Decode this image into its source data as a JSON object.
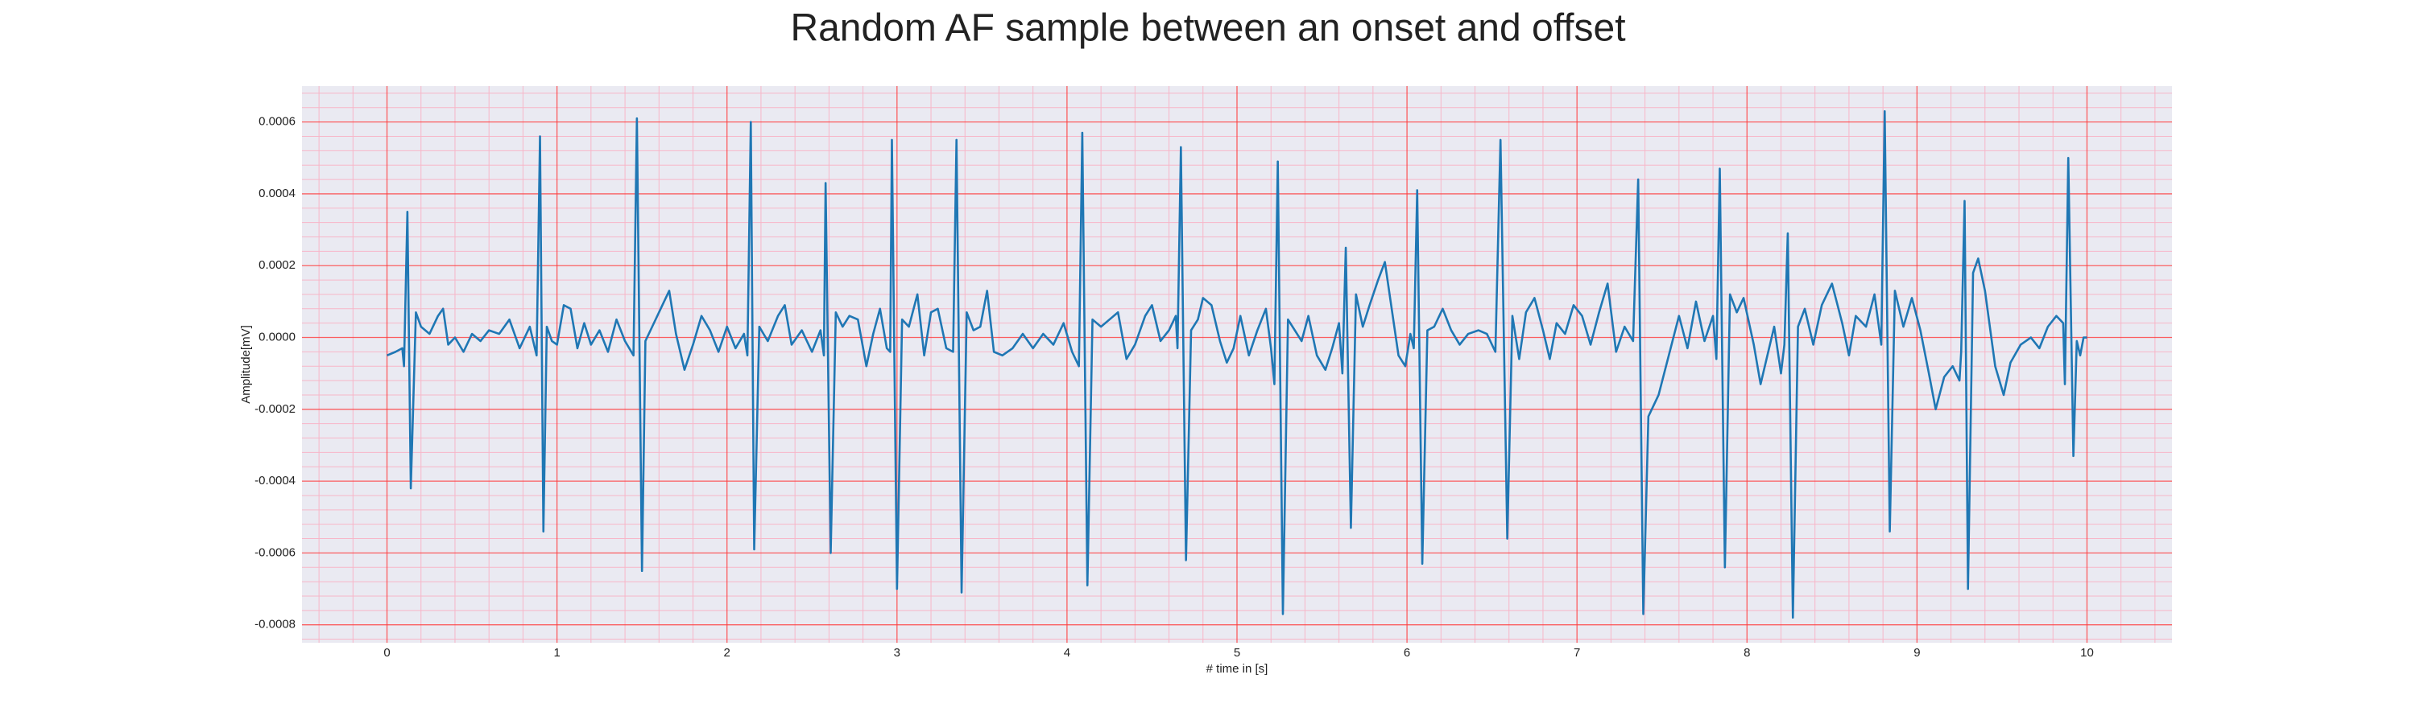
{
  "chart_data": {
    "type": "line",
    "title": "Random AF sample between an onset and offset",
    "xlabel": "# time in [s]",
    "ylabel": "Amplitude[mV]",
    "xlim": [
      -0.5,
      10.5
    ],
    "ylim": [
      -0.00085,
      0.0007
    ],
    "xticks": [
      0,
      1,
      2,
      3,
      4,
      5,
      6,
      7,
      8,
      9,
      10
    ],
    "yticks": [
      {
        "value": -0.0008,
        "label": "-0.0008"
      },
      {
        "value": -0.0006,
        "label": "-0.0006"
      },
      {
        "value": -0.0004,
        "label": "-0.0004"
      },
      {
        "value": -0.0002,
        "label": "-0.0002"
      },
      {
        "value": 0,
        "label": "0.0000"
      },
      {
        "value": 0.0002,
        "label": "0.0002"
      },
      {
        "value": 0.0004,
        "label": "0.0004"
      },
      {
        "value": 0.0006,
        "label": "0.0006"
      }
    ],
    "grid": true,
    "minor_grid": true,
    "grid_color": "#ff3b3b",
    "minor_grid_color": "#f7b6c8",
    "background": "#eaeaf2",
    "x": [
      0.0,
      0.05,
      0.09,
      0.1,
      0.12,
      0.14,
      0.17,
      0.2,
      0.25,
      0.3,
      0.33,
      0.36,
      0.4,
      0.45,
      0.5,
      0.55,
      0.6,
      0.66,
      0.72,
      0.78,
      0.84,
      0.88,
      0.9,
      0.92,
      0.94,
      0.97,
      1.0,
      1.04,
      1.08,
      1.12,
      1.16,
      1.2,
      1.25,
      1.3,
      1.35,
      1.4,
      1.45,
      1.47,
      1.5,
      1.52,
      1.56,
      1.62,
      1.66,
      1.7,
      1.75,
      1.8,
      1.85,
      1.9,
      1.95,
      2.0,
      2.05,
      2.1,
      2.12,
      2.14,
      2.16,
      2.19,
      2.24,
      2.3,
      2.34,
      2.38,
      2.44,
      2.5,
      2.55,
      2.57,
      2.58,
      2.61,
      2.64,
      2.68,
      2.72,
      2.77,
      2.82,
      2.86,
      2.9,
      2.94,
      2.96,
      2.97,
      3.0,
      3.03,
      3.07,
      3.12,
      3.16,
      3.2,
      3.24,
      3.29,
      3.33,
      3.35,
      3.38,
      3.41,
      3.45,
      3.49,
      3.53,
      3.57,
      3.62,
      3.68,
      3.74,
      3.8,
      3.86,
      3.92,
      3.98,
      4.03,
      4.07,
      4.09,
      4.12,
      4.15,
      4.2,
      4.25,
      4.3,
      4.35,
      4.4,
      4.46,
      4.5,
      4.55,
      4.6,
      4.64,
      4.65,
      4.67,
      4.7,
      4.73,
      4.77,
      4.8,
      4.85,
      4.9,
      4.94,
      4.98,
      5.02,
      5.07,
      5.12,
      5.17,
      5.2,
      5.22,
      5.24,
      5.27,
      5.3,
      5.34,
      5.38,
      5.42,
      5.47,
      5.52,
      5.56,
      5.6,
      5.62,
      5.64,
      5.67,
      5.7,
      5.74,
      5.78,
      5.83,
      5.87,
      5.91,
      5.95,
      5.99,
      6.02,
      6.04,
      6.06,
      6.09,
      6.12,
      6.16,
      6.21,
      6.26,
      6.31,
      6.36,
      6.42,
      6.47,
      6.52,
      6.55,
      6.59,
      6.62,
      6.66,
      6.7,
      6.75,
      6.8,
      6.84,
      6.88,
      6.93,
      6.98,
      7.03,
      7.08,
      7.13,
      7.18,
      7.23,
      7.28,
      7.33,
      7.36,
      7.39,
      7.42,
      7.48,
      7.54,
      7.6,
      7.65,
      7.7,
      7.75,
      7.8,
      7.82,
      7.84,
      7.87,
      7.9,
      7.94,
      7.98,
      8.04,
      8.08,
      8.12,
      8.16,
      8.2,
      8.22,
      8.24,
      8.27,
      8.3,
      8.34,
      8.39,
      8.44,
      8.5,
      8.56,
      8.6,
      8.64,
      8.7,
      8.75,
      8.79,
      8.81,
      8.84,
      8.87,
      8.92,
      8.97,
      9.02,
      9.07,
      9.11,
      9.16,
      9.21,
      9.25,
      9.26,
      9.28,
      9.3,
      9.33,
      9.36,
      9.4,
      9.46,
      9.51,
      9.55,
      9.61,
      9.67,
      9.72,
      9.77,
      9.82,
      9.86,
      9.87,
      9.89,
      9.92,
      9.94,
      9.96,
      9.98,
      10.0
    ],
    "series": [
      {
        "color": "#1f77b4",
        "values": [
          -5e-05,
          -4e-05,
          -3e-05,
          -8e-05,
          0.00035,
          -0.00042,
          7e-05,
          3e-05,
          1e-05,
          6e-05,
          8e-05,
          -2e-05,
          0,
          -4e-05,
          1e-05,
          -1e-05,
          2e-05,
          1e-05,
          5e-05,
          -3e-05,
          3e-05,
          -5e-05,
          0.00056,
          -0.00054,
          3e-05,
          -1e-05,
          -2e-05,
          9e-05,
          8e-05,
          -3e-05,
          4e-05,
          -2e-05,
          2e-05,
          -4e-05,
          5e-05,
          -1e-05,
          -5e-05,
          0.00061,
          -0.00065,
          -1e-05,
          3e-05,
          9e-05,
          0.00013,
          1e-05,
          -9e-05,
          -2e-05,
          6e-05,
          2e-05,
          -4e-05,
          3e-05,
          -3e-05,
          1e-05,
          -5e-05,
          0.0006,
          -0.00059,
          3e-05,
          -1e-05,
          6e-05,
          9e-05,
          -2e-05,
          2e-05,
          -4e-05,
          2e-05,
          -5e-05,
          0.00043,
          -0.0006,
          7e-05,
          3e-05,
          6e-05,
          5e-05,
          -8e-05,
          1e-05,
          8e-05,
          -3e-05,
          -4e-05,
          0.00055,
          -0.0007,
          5e-05,
          3e-05,
          0.00012,
          -5e-05,
          7e-05,
          8e-05,
          -3e-05,
          -4e-05,
          0.00055,
          -0.00071,
          7e-05,
          2e-05,
          3e-05,
          0.00013,
          -4e-05,
          -5e-05,
          -3e-05,
          1e-05,
          -3e-05,
          1e-05,
          -2e-05,
          4e-05,
          -4e-05,
          -8e-05,
          0.00057,
          -0.00069,
          5e-05,
          3e-05,
          5e-05,
          7e-05,
          -6e-05,
          -2e-05,
          6e-05,
          9e-05,
          -1e-05,
          2e-05,
          6e-05,
          -3e-05,
          0.00053,
          -0.00062,
          2e-05,
          5e-05,
          0.00011,
          9e-05,
          -1e-05,
          -7e-05,
          -3e-05,
          6e-05,
          -5e-05,
          2e-05,
          8e-05,
          -3e-05,
          -0.00013,
          0.00049,
          -0.00077,
          5e-05,
          2e-05,
          -1e-05,
          6e-05,
          -5e-05,
          -9e-05,
          -3e-05,
          4e-05,
          -0.0001,
          0.00025,
          -0.00053,
          0.00012,
          3e-05,
          9e-05,
          0.00016,
          0.00021,
          8e-05,
          -5e-05,
          -8e-05,
          1e-05,
          -3e-05,
          0.00041,
          -0.00063,
          2e-05,
          3e-05,
          8e-05,
          2e-05,
          -2e-05,
          1e-05,
          2e-05,
          1e-05,
          -4e-05,
          0.00055,
          -0.00056,
          6e-05,
          -6e-05,
          7e-05,
          0.00011,
          2e-05,
          -6e-05,
          4e-05,
          1e-05,
          9e-05,
          6e-05,
          -2e-05,
          7e-05,
          0.00015,
          -4e-05,
          3e-05,
          -1e-05,
          0.00044,
          -0.00077,
          -0.00022,
          -0.00016,
          -5e-05,
          6e-05,
          -3e-05,
          0.0001,
          -1e-05,
          6e-05,
          -6e-05,
          0.00047,
          -0.00064,
          0.00012,
          7e-05,
          0.00011,
          -2e-05,
          -0.00013,
          -5e-05,
          3e-05,
          -0.0001,
          -2e-05,
          0.00029,
          -0.00078,
          3e-05,
          8e-05,
          -2e-05,
          9e-05,
          0.00015,
          4e-05,
          -5e-05,
          6e-05,
          3e-05,
          0.00012,
          -2e-05,
          0.00063,
          -0.00054,
          0.00013,
          3e-05,
          0.00011,
          2e-05,
          -0.0001,
          -0.0002,
          -0.00011,
          -8e-05,
          -0.00012,
          -4e-05,
          0.00038,
          -0.0007,
          0.00018,
          0.00022,
          0.00013,
          -8e-05,
          -0.00016,
          -7e-05,
          -2e-05,
          0,
          -3e-05,
          3e-05,
          6e-05,
          4e-05,
          -0.00013,
          0.0005,
          -0.00033,
          -1e-05,
          -5e-05,
          0,
          0
        ]
      }
    ]
  }
}
